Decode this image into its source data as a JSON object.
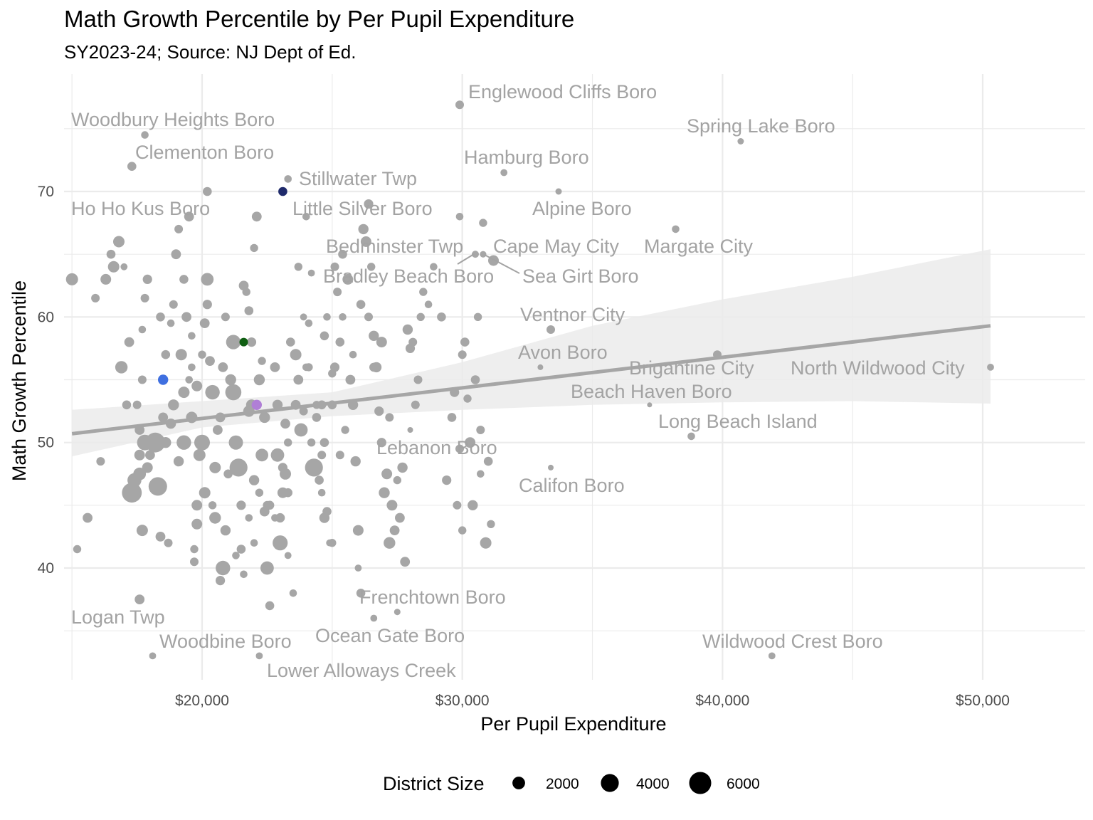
{
  "chart_data": {
    "type": "scatter",
    "title": "Math Growth Percentile by Per Pupil Expenditure",
    "subtitle": "SY2023-24; Source: NJ Dept of Ed.",
    "xlabel": "Per Pupil Expenditure",
    "ylabel": "Math Growth Percentile",
    "xlim": [
      15000,
      54000
    ],
    "ylim": [
      33,
      78
    ],
    "x_ticks": [
      20000,
      30000,
      40000,
      50000
    ],
    "x_tick_labels": [
      "$20,000",
      "$30,000",
      "$40,000",
      "$50,000"
    ],
    "y_ticks": [
      40,
      50,
      60,
      70
    ],
    "y_tick_labels": [
      "40",
      "50",
      "60",
      "70"
    ],
    "grid": true,
    "trend_line": {
      "x": [
        15000,
        50300
      ],
      "y": [
        50.7,
        59.3
      ]
    },
    "confidence_band": {
      "x": [
        15000,
        20000,
        25000,
        30000,
        35000,
        40000,
        45000,
        50300
      ],
      "lower": [
        48.9,
        51.2,
        52.1,
        52.6,
        53.0,
        53.2,
        53.3,
        53.1
      ],
      "upper": [
        52.6,
        53.3,
        54.0,
        56.4,
        59.3,
        61.4,
        63.2,
        65.4
      ]
    },
    "legend": {
      "title": "District Size",
      "position": "bottom",
      "sizes": [
        2000,
        4000,
        6000
      ],
      "labels": [
        "2000",
        "4000",
        "6000"
      ]
    },
    "colors": {
      "default": "#a6a6a6",
      "label": "#a3a3a3",
      "highlight": "#1f2a6b",
      "blue": "#3f6fe0",
      "green": "#0f5e12",
      "purple": "#b07fd6",
      "trend": "#a6a6a6",
      "band": "#ebebeb",
      "grid": "#ebebeb"
    },
    "labeled_points": [
      {
        "name": "Englewood Cliffs Boro",
        "x": 29900,
        "y": 76.9,
        "size": 900
      },
      {
        "name": "Woodbury Heights Boro",
        "x": 17800,
        "y": 74.5,
        "size": 700
      },
      {
        "name": "Spring Lake Boro",
        "x": 40700,
        "y": 74.0,
        "size": 500
      },
      {
        "name": "Clementon Boro",
        "x": 17300,
        "y": 72.0,
        "size": 1000
      },
      {
        "name": "Hamburg Boro",
        "x": 31600,
        "y": 71.5,
        "size": 600
      },
      {
        "name": "Stillwater Twp",
        "x": 23300,
        "y": 71.0,
        "size": 700
      },
      {
        "name": "Little Silver Boro",
        "x": 23100,
        "y": 70.0,
        "size": 1000,
        "color": "highlight"
      },
      {
        "name": "Alpine Boro",
        "x": 33700,
        "y": 70.0,
        "size": 500
      },
      {
        "name": "Ho Ho Kus Boro",
        "x": 20200,
        "y": 70.0,
        "size": 1000
      },
      {
        "name": "Margate City",
        "x": 38200,
        "y": 67.0,
        "size": 700
      },
      {
        "name": "Bedminster Twp",
        "x": 30500,
        "y": 65.0,
        "size": 600
      },
      {
        "name": "Cape May City",
        "x": 30800,
        "y": 65.0,
        "size": 500
      },
      {
        "name": "Bradley Beach Boro",
        "x": 30500,
        "y": 65.0,
        "size": 600
      },
      {
        "name": "Sea Girt Boro",
        "x": 30800,
        "y": 65.0,
        "size": 500
      },
      {
        "name": "Ventnor City",
        "x": 33400,
        "y": 59.0,
        "size": 900
      },
      {
        "name": "Avon Boro",
        "x": 33000,
        "y": 56.0,
        "size": 400
      },
      {
        "name": "Brigantine City",
        "x": 39800,
        "y": 57.0,
        "size": 900
      },
      {
        "name": "North Wildwood City",
        "x": 50300,
        "y": 56.0,
        "size": 600
      },
      {
        "name": "Beach Haven Boro",
        "x": 37200,
        "y": 53.0,
        "size": 300
      },
      {
        "name": "Long Beach Island",
        "x": 38800,
        "y": 50.5,
        "size": 700
      },
      {
        "name": "Lebanon Boro",
        "x": 28000,
        "y": 51.0,
        "size": 400
      },
      {
        "name": "Califon Boro",
        "x": 33400,
        "y": 48.0,
        "size": 400
      },
      {
        "name": "Frenchtown Boro",
        "x": 27500,
        "y": 36.5,
        "size": 500
      },
      {
        "name": "Logan Twp",
        "x": 17600,
        "y": 37.5,
        "size": 1200
      },
      {
        "name": "Ocean Gate Boro",
        "x": 26600,
        "y": 36.0,
        "size": 600
      },
      {
        "name": "Wildwood Crest Boro",
        "x": 41900,
        "y": 33.0,
        "size": 600
      },
      {
        "name": "Woodbine Boro",
        "x": 18100,
        "y": 33.0,
        "size": 600
      },
      {
        "name": "Lower Alloways Creek",
        "x": 22200,
        "y": 33.0,
        "size": 600
      }
    ],
    "highlighted_unlabeled_points": [
      {
        "x": 18500,
        "y": 55.0,
        "size": 1300,
        "color": "blue"
      },
      {
        "x": 21600,
        "y": 58.0,
        "size": 900,
        "color": "green"
      },
      {
        "x": 22100,
        "y": 53.0,
        "size": 1300,
        "color": "purple"
      }
    ],
    "points": [
      [
        15000,
        63,
        1800
      ],
      [
        15200,
        41.5,
        800
      ],
      [
        15600,
        44,
        1200
      ],
      [
        15900,
        61.5,
        900
      ],
      [
        16100,
        48.5,
        900
      ],
      [
        16300,
        63,
        1400
      ],
      [
        16500,
        65,
        1000
      ],
      [
        16600,
        64,
        1600
      ],
      [
        16800,
        66,
        1600
      ],
      [
        16900,
        56,
        1900
      ],
      [
        17000,
        64,
        600
      ],
      [
        17200,
        58,
        1200
      ],
      [
        17100,
        53,
        1000
      ],
      [
        17400,
        47,
        2400
      ],
      [
        17500,
        53,
        900
      ],
      [
        17600,
        51,
        1200
      ],
      [
        17700,
        59,
        700
      ],
      [
        17800,
        61.5,
        900
      ],
      [
        17700,
        55,
        900
      ],
      [
        17900,
        63,
        1100
      ],
      [
        17300,
        46,
        4800
      ],
      [
        17600,
        49,
        1400
      ],
      [
        17600,
        47.5,
        2000
      ],
      [
        17700,
        43,
        1600
      ],
      [
        17800,
        50,
        3000
      ],
      [
        17900,
        48,
        1400
      ],
      [
        18000,
        49,
        1200
      ],
      [
        18200,
        50,
        4800
      ],
      [
        18300,
        46.5,
        4200
      ],
      [
        18400,
        42.5,
        1200
      ],
      [
        18400,
        60,
        1000
      ],
      [
        18500,
        52,
        1200
      ],
      [
        18600,
        57,
        1000
      ],
      [
        18700,
        42,
        900
      ],
      [
        18800,
        59.5,
        700
      ],
      [
        18900,
        53,
        1500
      ],
      [
        18600,
        50,
        1500
      ],
      [
        18800,
        51.5,
        1300
      ],
      [
        18900,
        61,
        900
      ],
      [
        19000,
        65,
        1200
      ],
      [
        19100,
        48.5,
        1300
      ],
      [
        19200,
        57,
        1600
      ],
      [
        19300,
        54,
        1600
      ],
      [
        19400,
        60,
        1200
      ],
      [
        19300,
        50,
        2600
      ],
      [
        19500,
        55,
        700
      ],
      [
        19600,
        58.5,
        700
      ],
      [
        19600,
        52,
        1600
      ],
      [
        19700,
        41.5,
        800
      ],
      [
        19700,
        40.5,
        900
      ],
      [
        19800,
        45,
        1400
      ],
      [
        19800,
        43.5,
        1400
      ],
      [
        19900,
        49,
        1800
      ],
      [
        20000,
        50,
        3000
      ],
      [
        20000,
        57,
        800
      ],
      [
        20100,
        59.5,
        1200
      ],
      [
        20200,
        63,
        2000
      ],
      [
        20200,
        61,
        1100
      ],
      [
        20300,
        56.5,
        1200
      ],
      [
        20400,
        54,
        2600
      ],
      [
        20500,
        48,
        1600
      ],
      [
        20600,
        51,
        1200
      ],
      [
        20700,
        52,
        1200
      ],
      [
        20700,
        39,
        1100
      ],
      [
        20800,
        40,
        2600
      ],
      [
        20900,
        43,
        1300
      ],
      [
        21000,
        47.5,
        1000
      ],
      [
        21100,
        55,
        1500
      ],
      [
        21200,
        58,
        2600
      ],
      [
        21200,
        54,
        3200
      ],
      [
        21300,
        50,
        2500
      ],
      [
        21400,
        48,
        4000
      ],
      [
        21500,
        45,
        1100
      ],
      [
        21500,
        41.5,
        1000
      ],
      [
        21600,
        62.5,
        1200
      ],
      [
        21700,
        62,
        800
      ],
      [
        21800,
        60.5,
        1000
      ],
      [
        21800,
        52.5,
        1600
      ],
      [
        21900,
        58,
        1100
      ],
      [
        21900,
        53,
        1500
      ],
      [
        22000,
        65.5,
        800
      ],
      [
        22000,
        47,
        1300
      ],
      [
        22100,
        68,
        1200
      ],
      [
        22200,
        55,
        1500
      ],
      [
        22300,
        56.5,
        800
      ],
      [
        22300,
        49,
        2000
      ],
      [
        22400,
        52,
        1500
      ],
      [
        22400,
        44.5,
        1200
      ],
      [
        22500,
        40,
        2200
      ],
      [
        22600,
        45,
        1000
      ],
      [
        22600,
        37,
        1000
      ],
      [
        22800,
        56,
        1200
      ],
      [
        22900,
        53,
        1300
      ],
      [
        22900,
        49,
        2200
      ],
      [
        23000,
        42,
        2800
      ],
      [
        23100,
        46,
        1400
      ],
      [
        23100,
        48,
        1100
      ],
      [
        23200,
        47.5,
        1600
      ],
      [
        23300,
        50,
        800
      ],
      [
        23300,
        46,
        1000
      ],
      [
        23300,
        41,
        600
      ],
      [
        23500,
        38,
        700
      ],
      [
        23600,
        57,
        1600
      ],
      [
        23600,
        53,
        1200
      ],
      [
        23700,
        55,
        1200
      ],
      [
        23800,
        51,
        2200
      ],
      [
        23900,
        52.5,
        900
      ],
      [
        24000,
        56,
        700
      ],
      [
        24000,
        68,
        700
      ],
      [
        24100,
        59.5,
        700
      ],
      [
        24200,
        63.5,
        600
      ],
      [
        24200,
        50,
        800
      ],
      [
        24300,
        48,
        4000
      ],
      [
        24400,
        52,
        1000
      ],
      [
        24500,
        47,
        1000
      ],
      [
        24600,
        49,
        900
      ],
      [
        24600,
        46,
        700
      ],
      [
        24600,
        53,
        1000
      ],
      [
        24700,
        50,
        1000
      ],
      [
        24700,
        44,
        1300
      ],
      [
        24800,
        44.5,
        1000
      ],
      [
        24900,
        42,
        600
      ],
      [
        25000,
        42,
        800
      ],
      [
        25000,
        55.5,
        800
      ],
      [
        25100,
        64,
        900
      ],
      [
        25100,
        56,
        1100
      ],
      [
        25200,
        62,
        900
      ],
      [
        25300,
        58,
        1000
      ],
      [
        25400,
        60,
        700
      ],
      [
        25400,
        65,
        1000
      ],
      [
        25600,
        63,
        1400
      ],
      [
        25700,
        55,
        1200
      ],
      [
        25800,
        53,
        1300
      ],
      [
        25900,
        48.5,
        1300
      ],
      [
        26000,
        43,
        1400
      ],
      [
        26000,
        40,
        600
      ],
      [
        26100,
        38,
        1000
      ],
      [
        26200,
        67,
        1300
      ],
      [
        26300,
        66,
        1400
      ],
      [
        26400,
        69,
        1100
      ],
      [
        26500,
        64,
        800
      ],
      [
        26600,
        58.5,
        1300
      ],
      [
        26700,
        56,
        1300
      ],
      [
        26800,
        52.5,
        1100
      ],
      [
        26900,
        50,
        1100
      ],
      [
        27000,
        46,
        1500
      ],
      [
        27100,
        47.5,
        1400
      ],
      [
        27200,
        42,
        1700
      ],
      [
        27300,
        45,
        1400
      ],
      [
        27400,
        43,
        1200
      ],
      [
        27500,
        47,
        800
      ],
      [
        27600,
        44,
        1200
      ],
      [
        27700,
        48,
        1300
      ],
      [
        27800,
        40.5,
        1200
      ],
      [
        27900,
        59,
        1300
      ],
      [
        28000,
        57.5,
        1100
      ],
      [
        28100,
        58,
        900
      ],
      [
        28200,
        53,
        900
      ],
      [
        28300,
        55,
        900
      ],
      [
        28400,
        60,
        800
      ],
      [
        28500,
        62,
        800
      ],
      [
        28700,
        61,
        700
      ],
      [
        28900,
        64,
        700
      ],
      [
        29200,
        60,
        1000
      ],
      [
        29400,
        47,
        1100
      ],
      [
        29600,
        52,
        1000
      ],
      [
        29700,
        54,
        1100
      ],
      [
        29800,
        45,
        900
      ],
      [
        29900,
        49.5,
        900
      ],
      [
        30000,
        43,
        800
      ],
      [
        29900,
        68,
        700
      ],
      [
        30000,
        57,
        900
      ],
      [
        30100,
        58,
        1000
      ],
      [
        30200,
        53.5,
        800
      ],
      [
        30300,
        50,
        1400
      ],
      [
        30400,
        45,
        1300
      ],
      [
        30500,
        55,
        1000
      ],
      [
        30600,
        60,
        800
      ],
      [
        30700,
        51,
        900
      ],
      [
        30700,
        47.5,
        700
      ],
      [
        30800,
        67.5,
        800
      ],
      [
        30900,
        42,
        1600
      ],
      [
        31000,
        48.5,
        1000
      ],
      [
        31100,
        43.5,
        800
      ],
      [
        31200,
        64.5,
        1400
      ],
      [
        19100,
        67,
        900
      ],
      [
        19300,
        63,
        1000
      ],
      [
        19500,
        68,
        1200
      ],
      [
        19600,
        56,
        700
      ],
      [
        19800,
        54.5,
        1400
      ],
      [
        20100,
        46,
        1600
      ],
      [
        20400,
        45,
        800
      ],
      [
        20500,
        44,
        1700
      ],
      [
        20800,
        56,
        1200
      ],
      [
        20900,
        60,
        900
      ],
      [
        21300,
        41,
        700
      ],
      [
        21600,
        39.5,
        700
      ],
      [
        21800,
        44,
        700
      ],
      [
        22000,
        42,
        700
      ],
      [
        22200,
        46,
        800
      ],
      [
        22500,
        45,
        900
      ],
      [
        22800,
        44,
        700
      ],
      [
        23000,
        44,
        1100
      ],
      [
        23200,
        51.5,
        1200
      ],
      [
        23400,
        58,
        1000
      ],
      [
        23700,
        64,
        800
      ],
      [
        23900,
        60,
        600
      ],
      [
        24100,
        56,
        800
      ],
      [
        24400,
        53,
        800
      ],
      [
        24700,
        58.5,
        1000
      ],
      [
        24800,
        60,
        700
      ],
      [
        25000,
        53,
        1000
      ],
      [
        25300,
        49,
        900
      ],
      [
        25500,
        51,
        800
      ],
      [
        25800,
        57,
        700
      ],
      [
        26100,
        61,
        1000
      ],
      [
        26400,
        60,
        900
      ],
      [
        26600,
        56,
        1000
      ],
      [
        26900,
        58,
        1400
      ],
      [
        27200,
        52,
        900
      ]
    ]
  }
}
